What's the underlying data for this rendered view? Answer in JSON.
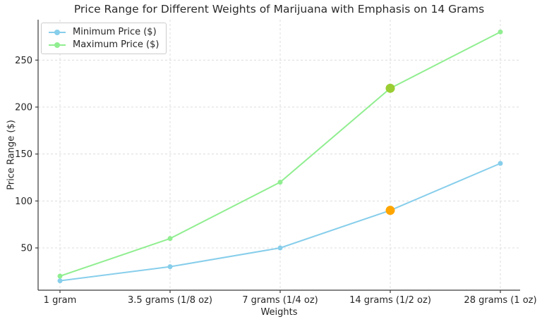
{
  "chart_data": {
    "type": "line",
    "title": "Price Range for Different Weights of Marijuana with Emphasis on 14 Grams",
    "xlabel": "Weights",
    "ylabel": "Price Range ($)",
    "categories": [
      "1 gram",
      "3.5 grams (1/8 oz)",
      "7 grams (1/4 oz)",
      "14 grams (1/2 oz)",
      "28 grams (1 oz)"
    ],
    "series": [
      {
        "name": "Minimum Price ($)",
        "values": [
          15,
          30,
          50,
          90,
          140
        ],
        "color": "#87CEEB"
      },
      {
        "name": "Maximum Price ($)",
        "values": [
          20,
          60,
          120,
          220,
          280
        ],
        "color": "#90EE90"
      }
    ],
    "emphasis": {
      "category": "14 grams (1/2 oz)",
      "category_index": 3,
      "points": [
        {
          "series": "Minimum Price ($)",
          "value": 90,
          "color": "#FFA500"
        },
        {
          "series": "Maximum Price ($)",
          "value": 220,
          "color": "#9ACD32"
        }
      ]
    },
    "yticks": [
      50,
      100,
      150,
      200,
      250
    ],
    "ylim": [
      5,
      293
    ],
    "grid": true,
    "legend_position": "upper left"
  }
}
